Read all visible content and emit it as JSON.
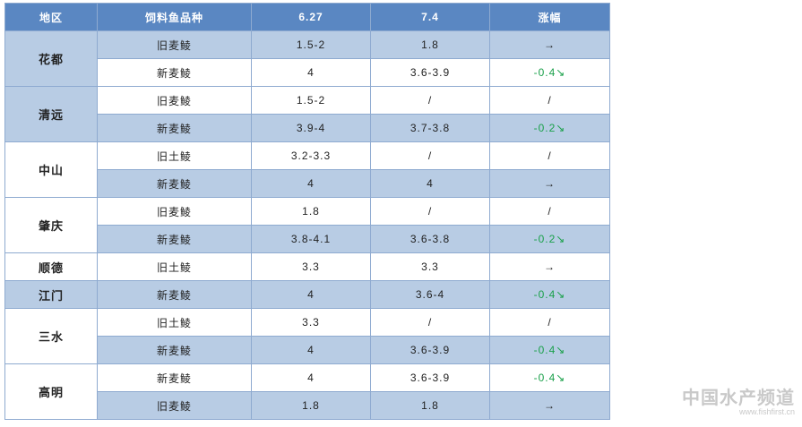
{
  "table": {
    "header": [
      "地区",
      "饲料鱼品种",
      "6.27",
      "7.4",
      "涨幅"
    ],
    "groups": [
      {
        "region": "花都",
        "rows": [
          [
            "旧麦鲮",
            "1.5-2",
            "1.8",
            "→"
          ],
          [
            "新麦鲮",
            "4",
            "3.6-3.9",
            "-0.4↘"
          ]
        ]
      },
      {
        "region": "清远",
        "rows": [
          [
            "旧麦鲮",
            "1.5-2",
            "/",
            "/"
          ],
          [
            "新麦鲮",
            "3.9-4",
            "3.7-3.8",
            "-0.2↘"
          ]
        ]
      },
      {
        "region": "中山",
        "rows": [
          [
            "旧土鲮",
            "3.2-3.3",
            "/",
            "/"
          ],
          [
            "新麦鲮",
            "4",
            "4",
            "→"
          ]
        ]
      },
      {
        "region": "肇庆",
        "rows": [
          [
            "旧麦鲮",
            "1.8",
            "/",
            "/"
          ],
          [
            "新麦鲮",
            "3.8-4.1",
            "3.6-3.8",
            "-0.2↘"
          ]
        ]
      },
      {
        "region": "顺德",
        "rows": [
          [
            "旧土鲮",
            "3.3",
            "3.3",
            "→"
          ]
        ]
      },
      {
        "region": "江门",
        "rows": [
          [
            "新麦鲮",
            "4",
            "3.6-4",
            "-0.4↘"
          ]
        ]
      },
      {
        "region": "三水",
        "rows": [
          [
            "旧土鲮",
            "3.3",
            "/",
            "/"
          ],
          [
            "新麦鲮",
            "4",
            "3.6-3.9",
            "-0.4↘"
          ]
        ]
      },
      {
        "region": "高明",
        "rows": [
          [
            "新麦鲮",
            "4",
            "3.6-3.9",
            "-0.4↘"
          ],
          [
            "旧麦鲮",
            "1.8",
            "1.8",
            "→"
          ]
        ]
      }
    ]
  },
  "watermark": {
    "title": "中国水产频道",
    "url": "www.fishfirst.cn"
  }
}
